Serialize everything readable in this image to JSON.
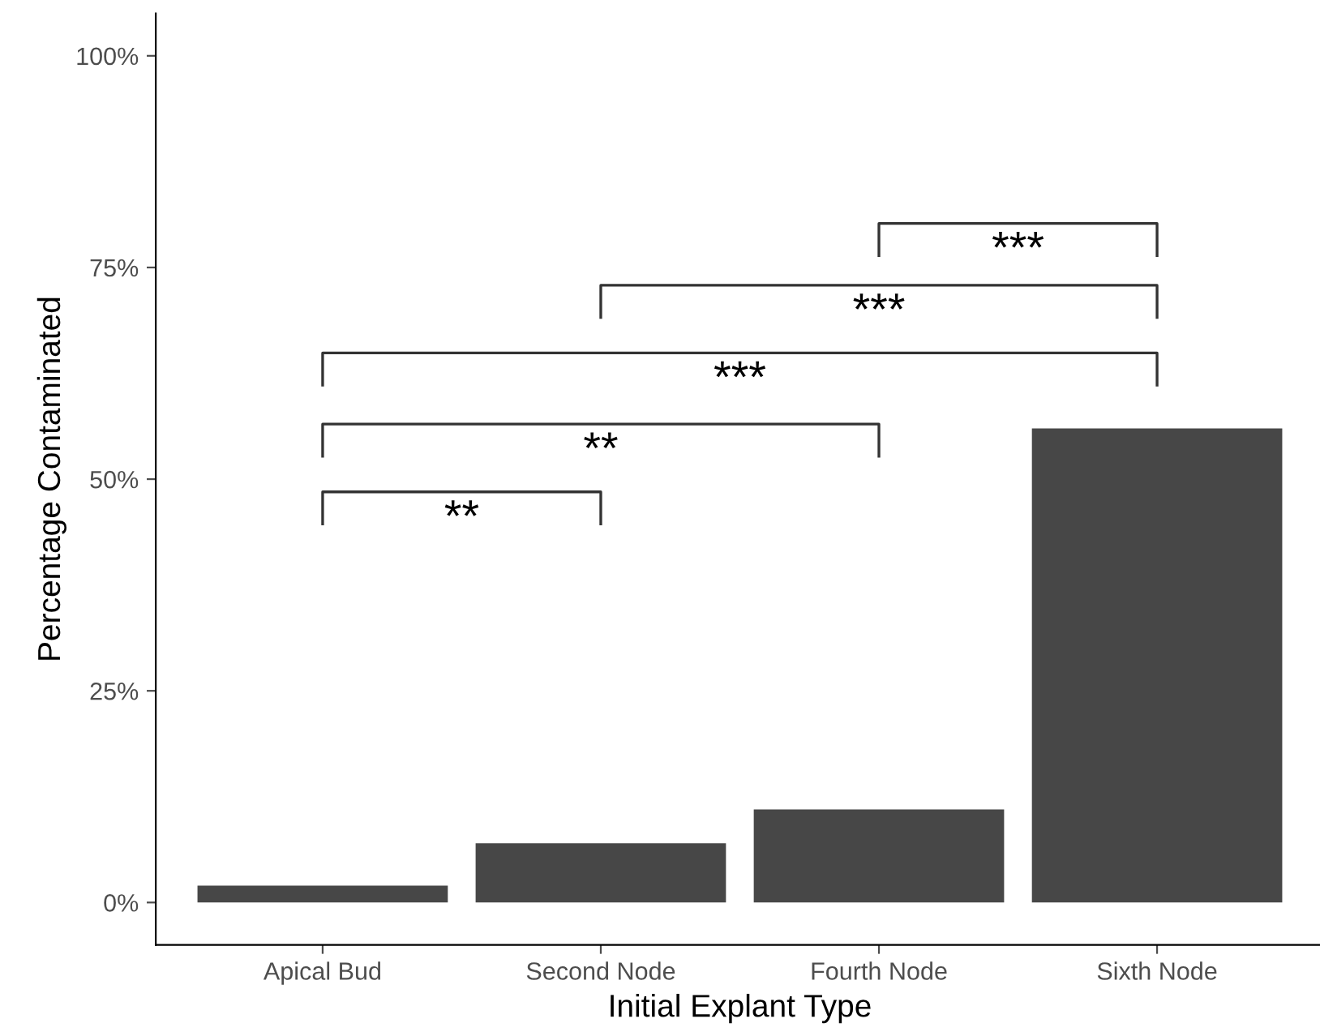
{
  "chart_data": {
    "type": "bar",
    "xlabel": "Initial Explant Type",
    "ylabel": "Percentage Contaminated",
    "categories": [
      "Apical Bud",
      "Second Node",
      "Fourth Node",
      "Sixth Node"
    ],
    "values": [
      2,
      7,
      11,
      56
    ],
    "color": "#474747",
    "ylim": [
      -5,
      105
    ],
    "yticks": [
      {
        "value": 0,
        "label": "0%"
      },
      {
        "value": 25,
        "label": "25%"
      },
      {
        "value": 50,
        "label": "50%"
      },
      {
        "value": 75,
        "label": "75%"
      },
      {
        "value": 100,
        "label": "100%"
      }
    ],
    "grid": false,
    "legend": false,
    "annotations": [
      "**",
      "**",
      "***",
      "***",
      "***"
    ]
  }
}
